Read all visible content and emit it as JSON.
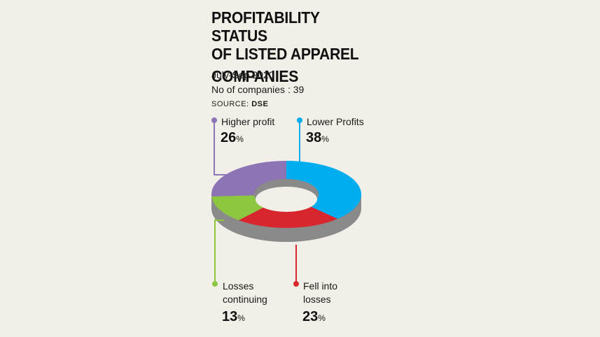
{
  "title_lines": [
    "PROFITABILITY STATUS",
    "OF LISTED APPAREL",
    "COMPANIES"
  ],
  "period": "July-Sep 2020",
  "companies": "No of companies : 39",
  "source_label": "SOURCE:",
  "source_name": "DSE",
  "chart_data": {
    "type": "pie",
    "style": "3d-donut",
    "title": "PROFITABILITY STATUS OF LISTED APPAREL COMPANIES",
    "subtitle": "July-Sep 2020",
    "note": "No of companies : 39",
    "source": "DSE",
    "unit": "%",
    "slices": [
      {
        "label": "Lower Profits",
        "value": 38,
        "color": "#00aeef"
      },
      {
        "label": "Fell into losses",
        "value": 23,
        "color": "#d7262e"
      },
      {
        "label": "Losses continuing",
        "value": 13,
        "color": "#8dc63f"
      },
      {
        "label": "Higher profit",
        "value": 26,
        "color": "#8d74b4"
      }
    ],
    "callouts": [
      {
        "lines": [
          "Higher profit"
        ],
        "pct": "26"
      },
      {
        "lines": [
          "Lower Profits"
        ],
        "pct": "38"
      },
      {
        "lines": [
          "Losses",
          "continuing"
        ],
        "pct": "13"
      },
      {
        "lines": [
          "Fell into",
          "losses"
        ],
        "pct": "23"
      }
    ]
  }
}
